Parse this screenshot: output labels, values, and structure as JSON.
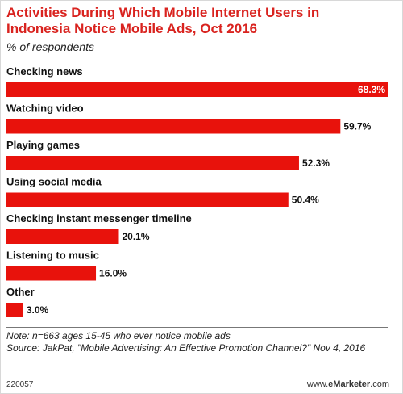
{
  "header": {
    "title": "Activities During Which Mobile Internet Users in Indonesia Notice Mobile Ads, Oct 2016",
    "subtitle": "% of respondents"
  },
  "chart_data": {
    "type": "bar",
    "orientation": "horizontal",
    "categories": [
      "Checking news",
      "Watching video",
      "Playing games",
      "Using social media",
      "Checking instant messenger timeline",
      "Listening to music",
      "Other"
    ],
    "values": [
      68.3,
      59.7,
      52.3,
      50.4,
      20.1,
      16.0,
      3.0
    ],
    "value_labels": [
      "68.3%",
      "59.7%",
      "52.3%",
      "50.4%",
      "20.1%",
      "16.0%",
      "3.0%"
    ],
    "title": "Activities During Which Mobile Internet Users in Indonesia Notice Mobile Ads, Oct 2016",
    "subtitle": "% of respondents",
    "bar_color": "#e8120c",
    "xlim": [
      0,
      68.3
    ]
  },
  "footer": {
    "note": "Note: n=663 ages 15-45 who ever notice mobile ads",
    "source": "Source: JakPat, \"Mobile Advertising: An Effective Promotion Channel?\" Nov 4, 2016",
    "chart_id": "220057",
    "brand_prefix": "www.",
    "brand_name": "eMarketer",
    "brand_suffix": ".com"
  }
}
